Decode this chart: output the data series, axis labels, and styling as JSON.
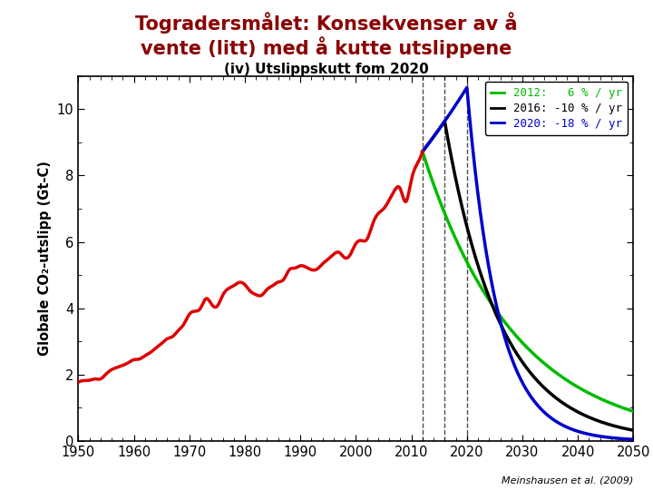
{
  "title_line1": "Togradersmålet: Konsekvenser av å",
  "title_line2": "vente (litt) med å kutte utslippene",
  "subtitle": "(iv) Utslippskutt fom 2020",
  "ylabel": "Globale CO₂-utslipp (Gt-C)",
  "footnote": "Meinshausen et al. (2009)",
  "title_color": "#8B0000",
  "subtitle_color": "#000000",
  "bg_color": "#ffffff",
  "xlim": [
    1950,
    2050
  ],
  "ylim": [
    0,
    11
  ],
  "yticks": [
    0,
    2,
    4,
    6,
    8,
    10
  ],
  "xticks": [
    1950,
    1960,
    1970,
    1980,
    1990,
    2000,
    2010,
    2020,
    2030,
    2040,
    2050
  ],
  "dashed_lines": [
    2012,
    2016,
    2020
  ],
  "legend_entries": [
    {
      "label": "2012:   6 % / yr",
      "color": "#00BB00"
    },
    {
      "label": "2016: -10 % / yr",
      "color": "#000000"
    },
    {
      "label": "2020: -18 % / yr",
      "color": "#0000CC"
    }
  ],
  "historical_color": "#DD0000",
  "hist_data_years": [
    1950,
    1951,
    1952,
    1953,
    1954,
    1955,
    1956,
    1957,
    1958,
    1959,
    1960,
    1961,
    1962,
    1963,
    1964,
    1965,
    1966,
    1967,
    1968,
    1969,
    1970,
    1971,
    1972,
    1973,
    1974,
    1975,
    1976,
    1977,
    1978,
    1979,
    1980,
    1981,
    1982,
    1983,
    1984,
    1985,
    1986,
    1987,
    1988,
    1989,
    1990,
    1991,
    1992,
    1993,
    1994,
    1995,
    1996,
    1997,
    1998,
    1999,
    2000,
    2001,
    2002,
    2003,
    2004,
    2005,
    2006,
    2007,
    2008,
    2009,
    2010,
    2011,
    2012
  ],
  "hist_data_vals": [
    1.77,
    1.82,
    1.83,
    1.87,
    1.87,
    2.02,
    2.15,
    2.22,
    2.28,
    2.36,
    2.45,
    2.47,
    2.57,
    2.67,
    2.81,
    2.94,
    3.08,
    3.15,
    3.33,
    3.52,
    3.82,
    3.91,
    4.0,
    4.29,
    4.12,
    4.06,
    4.39,
    4.59,
    4.68,
    4.78,
    4.71,
    4.51,
    4.41,
    4.39,
    4.57,
    4.68,
    4.79,
    4.87,
    5.16,
    5.21,
    5.28,
    5.24,
    5.16,
    5.18,
    5.34,
    5.48,
    5.63,
    5.68,
    5.52,
    5.62,
    5.95,
    6.04,
    6.08,
    6.53,
    6.85,
    7.0,
    7.26,
    7.56,
    7.6,
    7.21,
    7.87,
    8.34,
    8.72
  ],
  "curve_2012_cut": 2012,
  "curve_2012_rate": 0.06,
  "curve_2012_color": "#00BB00",
  "curve_2016_cut": 2016,
  "curve_2016_rate": 0.1,
  "curve_2016_color": "#000000",
  "curve_2020_cut": 2020,
  "curve_2020_rate": 0.18,
  "curve_2020_color": "#0000CC",
  "growth_rate_post2012": 0.025
}
